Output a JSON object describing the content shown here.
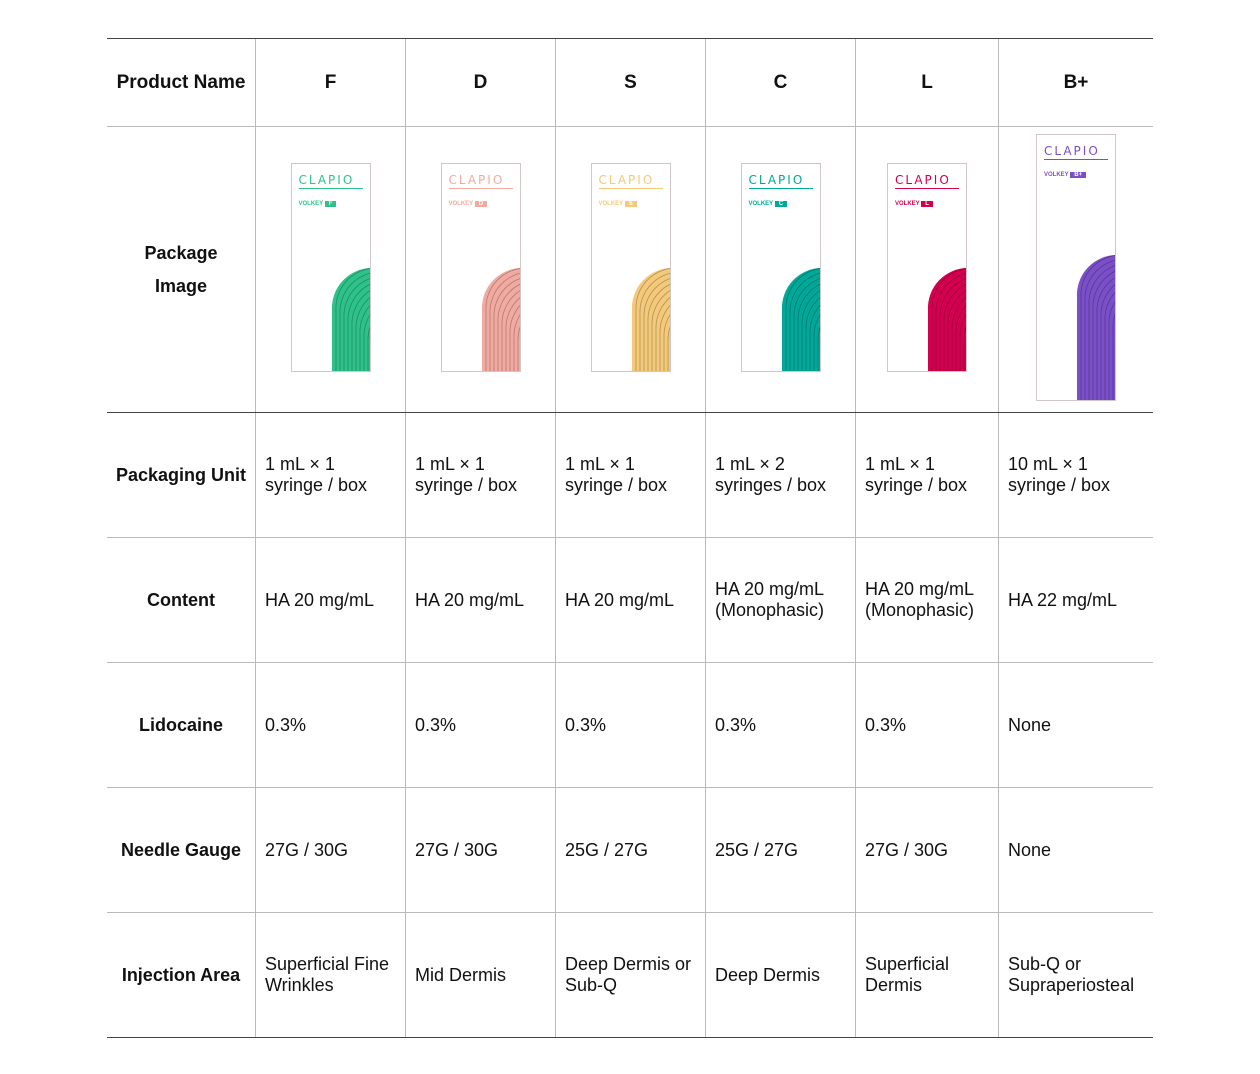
{
  "header": {
    "label": "Product Name",
    "products": [
      "F",
      "D",
      "S",
      "C",
      "L",
      "B+"
    ]
  },
  "package_row": {
    "label_line1": "Package",
    "label_line2": "Image",
    "brand": "CLAPIO",
    "sub_brand": "VOLKEY",
    "colors": [
      "#2ec28a",
      "#f2aaa0",
      "#f5c97a",
      "#00a89a",
      "#d4004f",
      "#7a4fc8"
    ]
  },
  "rows": [
    {
      "label": "Packaging Unit",
      "values": [
        "1 mL × 1 syringe / box",
        "1 mL × 1 syringe / box",
        "1 mL × 1 syringe / box",
        "1 mL × 2 syringes / box",
        "1 mL × 1 syringe / box",
        "10 mL × 1 syringe / box"
      ]
    },
    {
      "label": "Content",
      "values": [
        "HA 20 mg/mL",
        "HA 20 mg/mL",
        "HA 20 mg/mL",
        "HA 20 mg/mL (Monophasic)",
        "HA 20 mg/mL (Monophasic)",
        "HA 22 mg/mL"
      ]
    },
    {
      "label": "Lidocaine",
      "values": [
        "0.3%",
        "0.3%",
        "0.3%",
        "0.3%",
        "0.3%",
        "None"
      ]
    },
    {
      "label": "Needle Gauge",
      "values": [
        "27G / 30G",
        "27G / 30G",
        "25G / 27G",
        "25G / 27G",
        "27G / 30G",
        "None"
      ]
    },
    {
      "label": "Injection Area",
      "values": [
        "Superficial Fine Wrinkles",
        "Mid Dermis",
        "Deep Dermis or Sub-Q",
        "Deep Dermis",
        "Superficial Dermis",
        "Sub-Q or Supraperiosteal"
      ]
    }
  ]
}
